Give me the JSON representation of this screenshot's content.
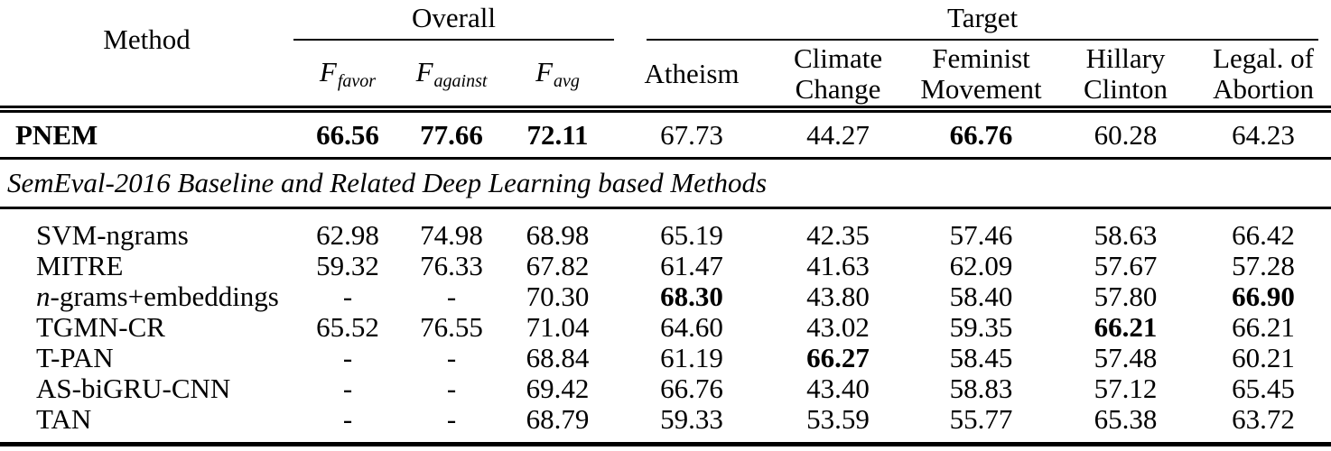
{
  "header": {
    "method_label": "Method",
    "group_overall": "Overall",
    "group_target": "Target",
    "overall_metrics": [
      {
        "base": "F",
        "sub": "favor"
      },
      {
        "base": "F",
        "sub": "against"
      },
      {
        "base": "F",
        "sub": "avg"
      }
    ],
    "target_labels": [
      "Atheism",
      "Climate Change",
      "Feminist Movement",
      "Hillary Clinton",
      "Legal. of Abortion"
    ]
  },
  "section_heading": "SemEval-2016 Baseline and Related Deep Learning based Methods",
  "rows": [
    {
      "mi": "",
      "m": "PNEM",
      "c": [
        "66.56",
        "77.66",
        "72.11",
        "67.73",
        "44.27",
        "66.76",
        "60.28",
        "64.23"
      ]
    },
    {
      "mi": "",
      "m": "SVM-ngrams",
      "c": [
        "62.98",
        "74.98",
        "68.98",
        "65.19",
        "42.35",
        "57.46",
        "58.63",
        "66.42"
      ]
    },
    {
      "mi": "",
      "m": "MITRE",
      "c": [
        "59.32",
        "76.33",
        "67.82",
        "61.47",
        "41.63",
        "62.09",
        "57.67",
        "57.28"
      ]
    },
    {
      "mi": "n",
      "m": "-grams+embeddings",
      "c": [
        "-",
        "-",
        "70.30",
        "68.30",
        "43.80",
        "58.40",
        "57.80",
        "66.90"
      ]
    },
    {
      "mi": "",
      "m": "TGMN-CR",
      "c": [
        "65.52",
        "76.55",
        "71.04",
        "64.60",
        "43.02",
        "59.35",
        "66.21",
        "66.21"
      ]
    },
    {
      "mi": "",
      "m": "T-PAN",
      "c": [
        "-",
        "-",
        "68.84",
        "61.19",
        "66.27",
        "58.45",
        "57.48",
        "60.21"
      ]
    },
    {
      "mi": "",
      "m": "AS-biGRU-CNN",
      "c": [
        "-",
        "-",
        "69.42",
        "66.76",
        "43.40",
        "58.83",
        "57.12",
        "65.45"
      ]
    },
    {
      "mi": "",
      "m": "TAN",
      "c": [
        "-",
        "-",
        "68.79",
        "59.33",
        "53.59",
        "55.77",
        "65.38",
        "63.72"
      ]
    }
  ]
}
